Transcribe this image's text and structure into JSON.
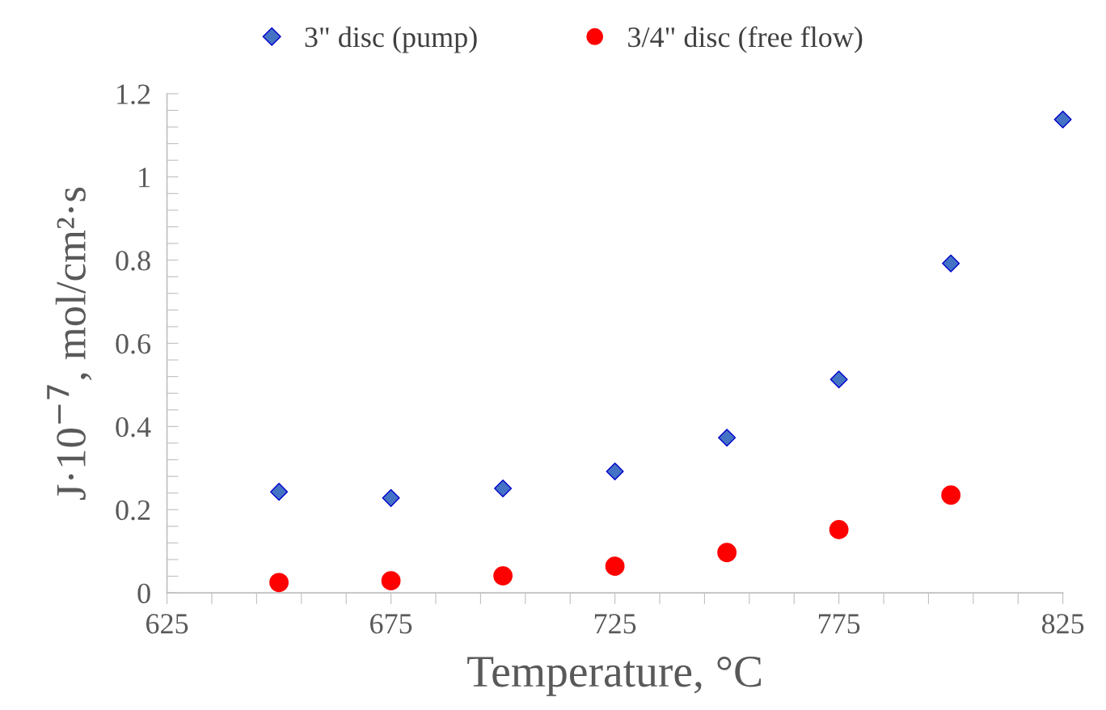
{
  "chart_data": {
    "type": "scatter",
    "xlabel": "Temperature, °C",
    "ylabel": "J·10$^{−7}$, mol/cm²·s",
    "series": [
      {
        "name": "3\" disc (pump)",
        "color": "#4472c4",
        "marker": "diamond",
        "x": [
          650,
          675,
          700,
          725,
          750,
          775,
          800,
          825
        ],
        "values": [
          0.243,
          0.228,
          0.251,
          0.292,
          0.373,
          0.513,
          0.792,
          1.138
        ]
      },
      {
        "name": "3/4\" disc (free flow)",
        "color": "#ff0000",
        "marker": "circle",
        "x": [
          650,
          675,
          700,
          725,
          750,
          775,
          800
        ],
        "values": [
          0.025,
          0.029,
          0.041,
          0.064,
          0.097,
          0.152,
          0.235
        ]
      }
    ],
    "xlim": [
      625,
      825
    ],
    "xticks": [
      625,
      {
        "value": 635,
        "label": null
      },
      {
        "value": 645,
        "label": null
      },
      {
        "value": 655,
        "label": null
      },
      {
        "value": 665,
        "label": null
      },
      675,
      {
        "value": 685,
        "label": null
      },
      {
        "value": 695,
        "label": null
      },
      {
        "value": 705,
        "label": null
      },
      {
        "value": 715,
        "label": null
      },
      725,
      {
        "value": 735,
        "label": null
      },
      {
        "value": 745,
        "label": null
      },
      {
        "value": 755,
        "label": null
      },
      {
        "value": 765,
        "label": null
      },
      775,
      {
        "value": 785,
        "label": null
      },
      {
        "value": 795,
        "label": null
      },
      {
        "value": 805,
        "label": null
      },
      {
        "value": 815,
        "label": null
      },
      825
    ],
    "ylim": [
      0,
      1.2
    ],
    "yticks": [
      0,
      {
        "value": 0.04,
        "label": null
      },
      {
        "value": 0.08,
        "label": null
      },
      {
        "value": 0.12,
        "label": null
      },
      {
        "value": 0.16,
        "label": null
      },
      0.2,
      {
        "value": 0.24,
        "label": null
      },
      {
        "value": 0.28,
        "label": null
      },
      {
        "value": 0.32,
        "label": null
      },
      {
        "value": 0.36,
        "label": null
      },
      0.4,
      {
        "value": 0.44,
        "label": null
      },
      {
        "value": 0.48,
        "label": null
      },
      {
        "value": 0.52,
        "label": null
      },
      {
        "value": 0.56,
        "label": null
      },
      0.6,
      {
        "value": 0.64,
        "label": null
      },
      {
        "value": 0.68,
        "label": null
      },
      {
        "value": 0.72,
        "label": null
      },
      {
        "value": 0.76,
        "label": null
      },
      0.8,
      {
        "value": 0.84,
        "label": null
      },
      {
        "value": 0.88,
        "label": null
      },
      {
        "value": 0.92,
        "label": null
      },
      {
        "value": 0.96,
        "label": null
      },
      1,
      {
        "value": 1.04,
        "label": null
      },
      {
        "value": 1.08,
        "label": null
      },
      {
        "value": 1.12,
        "label": null
      },
      {
        "value": 1.16,
        "label": null
      },
      1.2
    ],
    "grid": false,
    "legend": "top"
  }
}
